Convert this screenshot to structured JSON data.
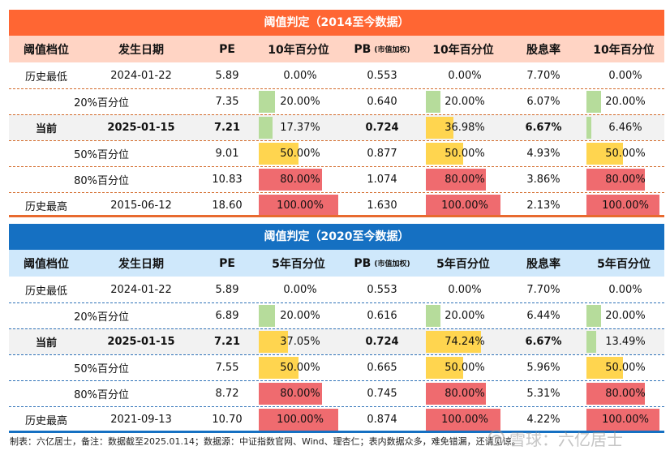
{
  "colors": {
    "section1_title_bg": "#ff6633",
    "section1_header_bg": "#ffd4c4",
    "section2_title_bg": "#1570c2",
    "section2_header_bg": "#cfe8fb",
    "bar_green": "#b6dc9b",
    "bar_yellow": "#ffd54f",
    "bar_red": "#ef6b6f"
  },
  "sections": [
    {
      "title": "阈值判定（2014至今数据）",
      "headers": [
        "阈值档位",
        "发生日期",
        "PE",
        "10年百分位",
        "PB",
        "(市值加权)",
        "10年百分位",
        "股息率",
        "10年百分位"
      ],
      "rows": [
        {
          "level": "历史最低",
          "date": "2024-01-22",
          "pe": "5.89",
          "pe_pct": "0.00%",
          "pe_pct_val": 0.0,
          "pe_bar": "none",
          "pb": "0.553",
          "pb_pct": "0.00%",
          "pb_pct_val": 0.0,
          "pb_bar": "none",
          "dy": "7.70%",
          "dy_pct": "0.00%",
          "dy_pct_val": 0.0,
          "dy_bar": "none"
        },
        {
          "level": "20%百分位",
          "date": "",
          "pe": "7.35",
          "pe_pct": "20.00%",
          "pe_pct_val": 20.0,
          "pe_bar": "green",
          "pb": "0.640",
          "pb_pct": "20.00%",
          "pb_pct_val": 20.0,
          "pb_bar": "green",
          "dy": "6.07%",
          "dy_pct": "20.00%",
          "dy_pct_val": 20.0,
          "dy_bar": "green"
        },
        {
          "level": "当前",
          "date": "2025-01-15",
          "pe": "7.21",
          "pe_pct": "17.37%",
          "pe_pct_val": 17.37,
          "pe_bar": "green",
          "pb": "0.724",
          "pb_pct": "36.98%",
          "pb_pct_val": 36.98,
          "pb_bar": "yellow",
          "dy": "6.67%",
          "dy_pct": "6.46%",
          "dy_pct_val": 6.46,
          "dy_bar": "green",
          "current": true
        },
        {
          "level": "50%百分位",
          "date": "",
          "pe": "9.01",
          "pe_pct": "50.00%",
          "pe_pct_val": 50.0,
          "pe_bar": "yellow",
          "pb": "0.877",
          "pb_pct": "50.00%",
          "pb_pct_val": 50.0,
          "pb_bar": "yellow",
          "dy": "4.93%",
          "dy_pct": "50.00%",
          "dy_pct_val": 50.0,
          "dy_bar": "yellow"
        },
        {
          "level": "80%百分位",
          "date": "",
          "pe": "10.83",
          "pe_pct": "80.00%",
          "pe_pct_val": 80.0,
          "pe_bar": "red",
          "pb": "1.074",
          "pb_pct": "80.00%",
          "pb_pct_val": 80.0,
          "pb_bar": "red",
          "dy": "3.86%",
          "dy_pct": "80.00%",
          "dy_pct_val": 80.0,
          "dy_bar": "red"
        },
        {
          "level": "历史最高",
          "date": "2015-06-12",
          "pe": "18.60",
          "pe_pct": "100.00%",
          "pe_pct_val": 100.0,
          "pe_bar": "red",
          "pb": "1.630",
          "pb_pct": "100.00%",
          "pb_pct_val": 100.0,
          "pb_bar": "red",
          "dy": "2.13%",
          "dy_pct": "100.00%",
          "dy_pct_val": 100.0,
          "dy_bar": "red"
        }
      ]
    },
    {
      "title": "阈值判定（2020至今数据）",
      "headers": [
        "阈值档位",
        "发生日期",
        "PE",
        "5年百分位",
        "PB",
        "(市值加权)",
        "5年百分位",
        "股息率",
        "5年百分位"
      ],
      "rows": [
        {
          "level": "历史最低",
          "date": "2024-01-22",
          "pe": "5.89",
          "pe_pct": "0.00%",
          "pe_pct_val": 0.0,
          "pe_bar": "none",
          "pb": "0.553",
          "pb_pct": "0.00%",
          "pb_pct_val": 0.0,
          "pb_bar": "none",
          "dy": "7.70%",
          "dy_pct": "0.00%",
          "dy_pct_val": 0.0,
          "dy_bar": "none"
        },
        {
          "level": "20%百分位",
          "date": "",
          "pe": "6.89",
          "pe_pct": "20.00%",
          "pe_pct_val": 20.0,
          "pe_bar": "green",
          "pb": "0.616",
          "pb_pct": "20.00%",
          "pb_pct_val": 20.0,
          "pb_bar": "green",
          "dy": "6.44%",
          "dy_pct": "20.00%",
          "dy_pct_val": 20.0,
          "dy_bar": "green"
        },
        {
          "level": "当前",
          "date": "2025-01-15",
          "pe": "7.21",
          "pe_pct": "37.05%",
          "pe_pct_val": 37.05,
          "pe_bar": "yellow",
          "pb": "0.724",
          "pb_pct": "74.24%",
          "pb_pct_val": 74.24,
          "pb_bar": "yellow",
          "dy": "6.67%",
          "dy_pct": "13.49%",
          "dy_pct_val": 13.49,
          "dy_bar": "green",
          "current": true
        },
        {
          "level": "50%百分位",
          "date": "",
          "pe": "7.55",
          "pe_pct": "50.00%",
          "pe_pct_val": 50.0,
          "pe_bar": "yellow",
          "pb": "0.665",
          "pb_pct": "50.00%",
          "pb_pct_val": 50.0,
          "pb_bar": "yellow",
          "dy": "5.96%",
          "dy_pct": "50.00%",
          "dy_pct_val": 50.0,
          "dy_bar": "yellow"
        },
        {
          "level": "80%百分位",
          "date": "",
          "pe": "8.72",
          "pe_pct": "80.00%",
          "pe_pct_val": 80.0,
          "pe_bar": "red",
          "pb": "0.745",
          "pb_pct": "80.00%",
          "pb_pct_val": 80.0,
          "pb_bar": "red",
          "dy": "5.31%",
          "dy_pct": "80.00%",
          "dy_pct_val": 80.0,
          "dy_bar": "red"
        },
        {
          "level": "历史最高",
          "date": "2021-09-13",
          "pe": "10.70",
          "pe_pct": "100.00%",
          "pe_pct_val": 100.0,
          "pe_bar": "red",
          "pb": "0.874",
          "pb_pct": "100.00%",
          "pb_pct_val": 100.0,
          "pb_bar": "red",
          "dy": "4.22%",
          "dy_pct": "100.00%",
          "dy_pct_val": 100.0,
          "dy_bar": "red"
        }
      ]
    }
  ],
  "footer": "制表：六亿居士，备注：数据截至2025.01.14；数据源：中证指数官网、Wind、理杏仁；表内数据众多，难免错漏，还请见谅。",
  "watermark": "雪球：六亿居士"
}
